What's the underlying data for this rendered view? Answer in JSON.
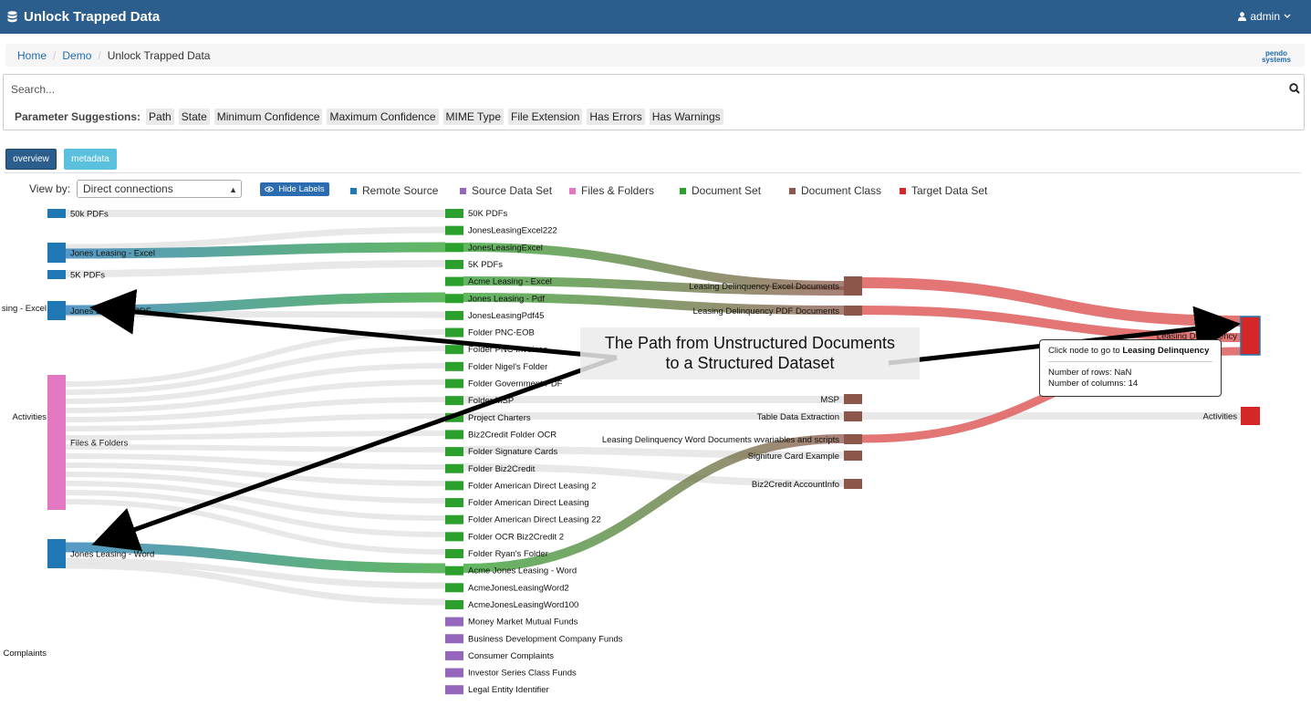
{
  "app": {
    "title": "Unlock Trapped Data",
    "user": "admin"
  },
  "breadcrumb": {
    "home": "Home",
    "demo": "Demo",
    "current": "Unlock Trapped Data"
  },
  "logo_text": [
    "pendo",
    "systems"
  ],
  "search": {
    "placeholder": "Search...",
    "params_label": "Parameter Suggestions:",
    "params": [
      "Path",
      "State",
      "Minimum Confidence",
      "Maximum Confidence",
      "MIME Type",
      "File Extension",
      "Has Errors",
      "Has Warnings"
    ]
  },
  "tabs": {
    "overview": "overview",
    "metadata": "metadata"
  },
  "controls": {
    "view_by_label": "View by:",
    "view_by_value": "Direct connections",
    "hide_labels": "Hide Labels"
  },
  "legend": [
    {
      "label": "Remote Source",
      "color": "#1f77b4"
    },
    {
      "label": "Source Data Set",
      "color": "#9467bd"
    },
    {
      "label": "Files & Folders",
      "color": "#e377c2"
    },
    {
      "label": "Document Set",
      "color": "#2ca02c"
    },
    {
      "label": "Document Class",
      "color": "#8c564b"
    },
    {
      "label": "Target Data Set",
      "color": "#d62728"
    }
  ],
  "sankey": {
    "left_nodes": [
      {
        "label": "50k PDFs",
        "color": "#1f77b4"
      },
      {
        "label": "Jones Leasing - Excel",
        "color": "#1f77b4"
      },
      {
        "label": "5K PDFs",
        "color": "#1f77b4"
      },
      {
        "label": "Jones Leasing - PDF",
        "color": "#1f77b4"
      },
      {
        "label": "Files & Folders",
        "color": "#e377c2"
      },
      {
        "label": "Jones Leasing - Word",
        "color": "#1f77b4"
      }
    ],
    "clipped_left_labels": [
      "sing - Excel",
      "Activities",
      "Complaints"
    ],
    "middle_nodes": [
      {
        "label": "50K PDFs",
        "color": "#2ca02c"
      },
      {
        "label": "JonesLeasingExcel222",
        "color": "#2ca02c"
      },
      {
        "label": "JonesLeasingExcel",
        "color": "#2ca02c"
      },
      {
        "label": "5K PDFs",
        "color": "#2ca02c"
      },
      {
        "label": "Acme Leasing - Excel",
        "color": "#2ca02c"
      },
      {
        "label": "Jones Leasing - Pdf",
        "color": "#2ca02c"
      },
      {
        "label": "JonesLeasingPdf45",
        "color": "#2ca02c"
      },
      {
        "label": "Folder PNC-EOB",
        "color": "#2ca02c"
      },
      {
        "label": "Folder PNC Invoices",
        "color": "#2ca02c"
      },
      {
        "label": "Folder Nigel's Folder",
        "color": "#2ca02c"
      },
      {
        "label": "Folder Government PDF",
        "color": "#2ca02c"
      },
      {
        "label": "Folder MSP",
        "color": "#2ca02c"
      },
      {
        "label": "Project Charters",
        "color": "#2ca02c"
      },
      {
        "label": "Biz2Credit Folder OCR",
        "color": "#2ca02c"
      },
      {
        "label": "Folder Signature Cards",
        "color": "#2ca02c"
      },
      {
        "label": "Folder Biz2Credit",
        "color": "#2ca02c"
      },
      {
        "label": "Folder American Direct Leasing 2",
        "color": "#2ca02c"
      },
      {
        "label": "Folder American Direct Leasing",
        "color": "#2ca02c"
      },
      {
        "label": "Folder American Direct Leasing 22",
        "color": "#2ca02c"
      },
      {
        "label": "Folder OCR Biz2Credit 2",
        "color": "#2ca02c"
      },
      {
        "label": "Folder Ryan's Folder",
        "color": "#2ca02c"
      },
      {
        "label": "Acme Jones Leasing - Word",
        "color": "#2ca02c"
      },
      {
        "label": "AcmeJonesLeasingWord2",
        "color": "#2ca02c"
      },
      {
        "label": "AcmeJonesLeasingWord100",
        "color": "#2ca02c"
      },
      {
        "label": "Money Market Mutual Funds",
        "color": "#9467bd"
      },
      {
        "label": "Business Development Company Funds",
        "color": "#9467bd"
      },
      {
        "label": "Consumer Complaints",
        "color": "#9467bd"
      },
      {
        "label": "Investor Series Class Funds",
        "color": "#9467bd"
      },
      {
        "label": "Legal Entity Identifier",
        "color": "#9467bd"
      }
    ],
    "class_nodes": [
      {
        "label": "Leasing Delinquency Excel Documents",
        "color": "#8c564b"
      },
      {
        "label": "Leasing Delinquency PDF Documents",
        "color": "#8c564b"
      },
      {
        "label": "MSP",
        "color": "#8c564b"
      },
      {
        "label": "Table Data Extraction",
        "color": "#8c564b"
      },
      {
        "label": "Leasing Delinquency Word Documents wvariables and scripts",
        "color": "#8c564b"
      },
      {
        "label": "Signiture Card Example",
        "color": "#8c564b"
      },
      {
        "label": "Biz2Credit AccountInfo",
        "color": "#8c564b"
      }
    ],
    "target_nodes": [
      {
        "label": "Leasing Delinquency",
        "color": "#d62728"
      },
      {
        "label": "Activities",
        "color": "#d62728"
      }
    ]
  },
  "annotation": {
    "line1": "The Path from Unstructured Documents",
    "line2": "to a Structured Dataset"
  },
  "tooltip": {
    "hint": "Click node to go to",
    "node": "Leasing Delinquency",
    "rows": "Number of rows: NaN",
    "cols": "Number of columns: 14"
  }
}
